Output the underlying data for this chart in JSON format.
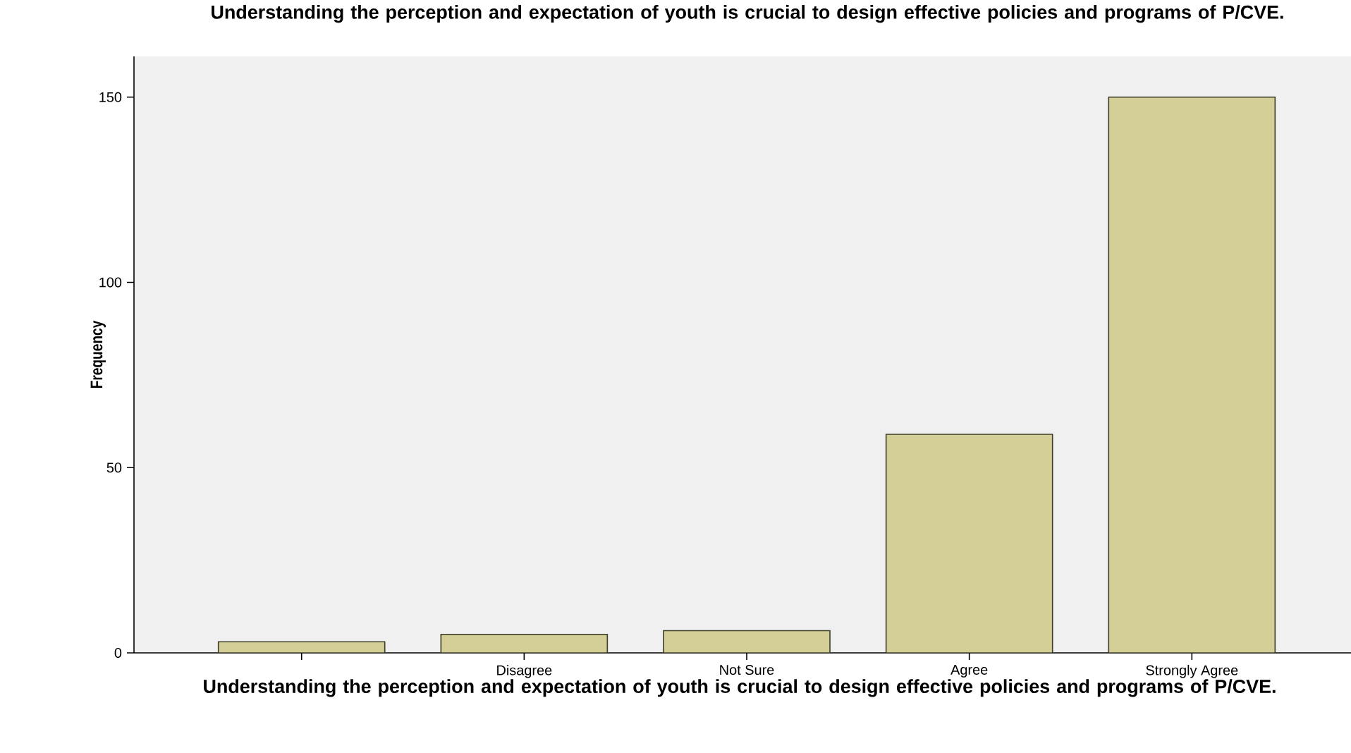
{
  "chart_data": {
    "type": "bar",
    "title": "Understanding the perception and expectation of youth is crucial to design effective policies and programs of P/CVE.",
    "xlabel": "Understanding the perception and expectation of youth is crucial to design effective policies and programs of P/CVE.",
    "ylabel": "Frequency",
    "categories": [
      null,
      "Disagree",
      "Not Sure",
      "Agree",
      "Strongly Agree"
    ],
    "values": [
      3,
      5,
      6,
      59,
      150
    ],
    "color": "#d3cf97",
    "ylim": [
      0,
      161
    ],
    "yticks": [
      0,
      50,
      100,
      150
    ],
    "grid": false
  }
}
